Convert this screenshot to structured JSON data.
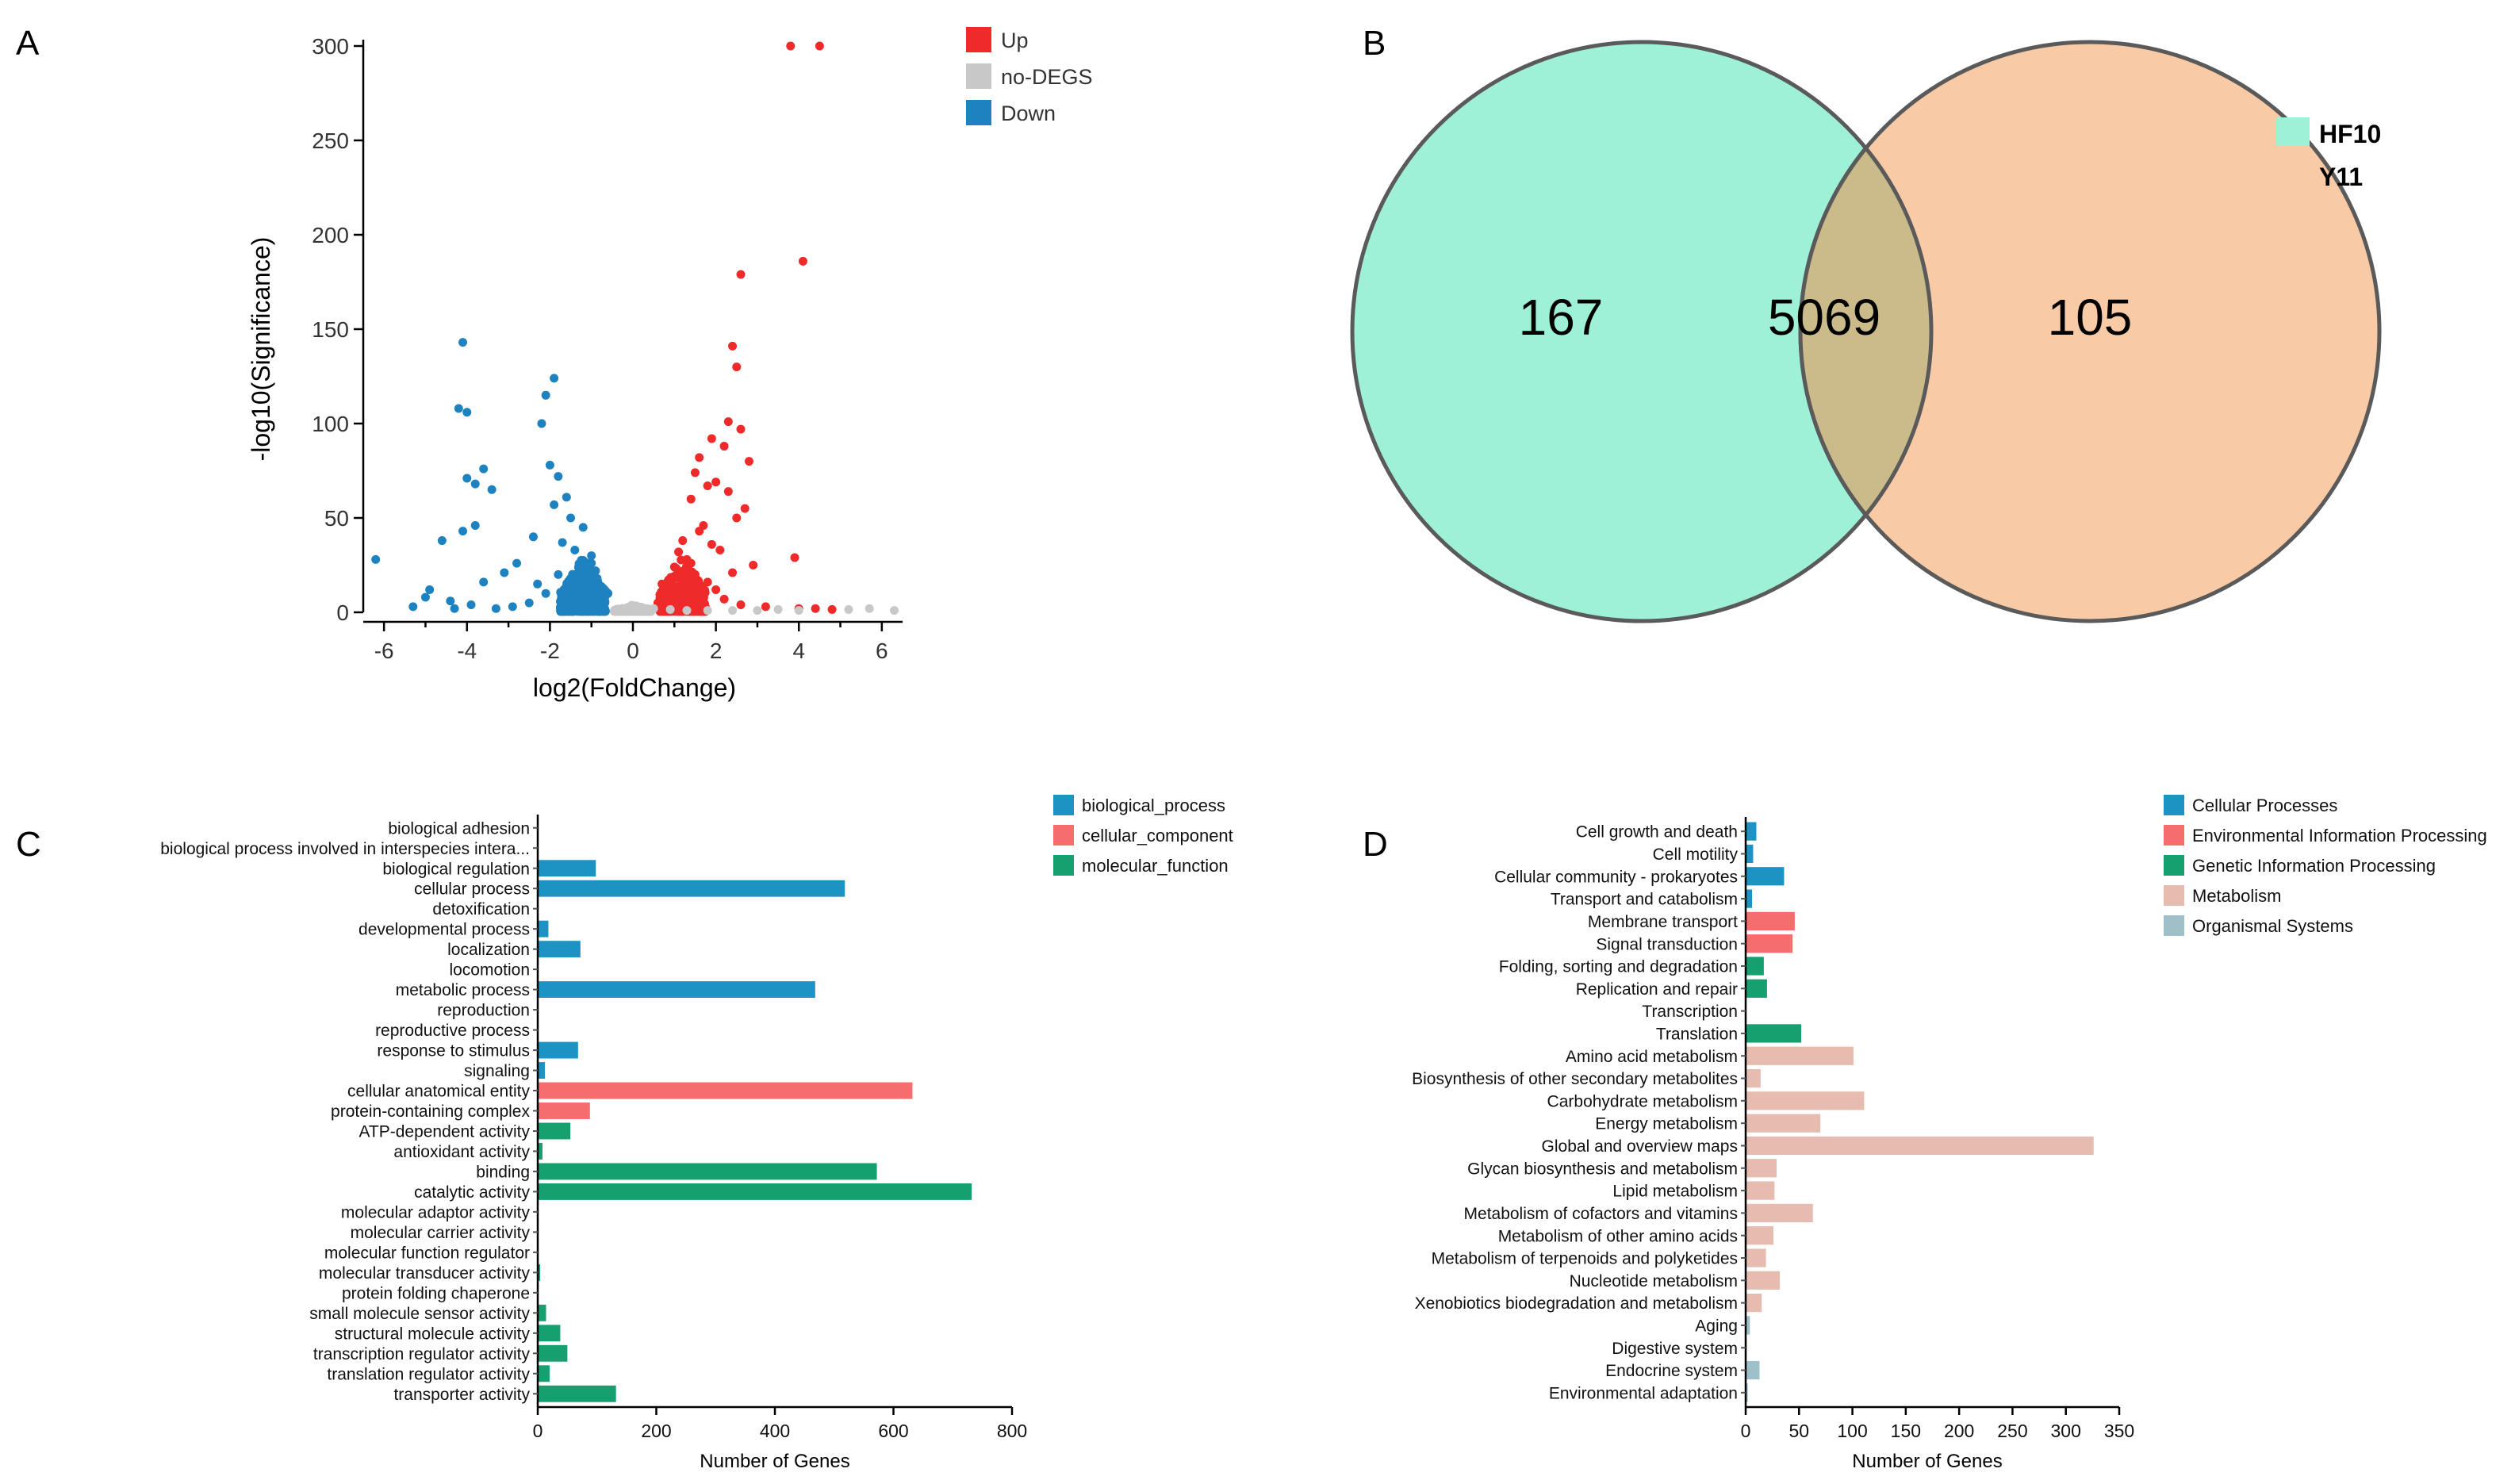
{
  "panels": {
    "a": {
      "letter": "A"
    },
    "b": {
      "letter": "B"
    },
    "c": {
      "letter": "C"
    },
    "d": {
      "letter": "D"
    }
  },
  "colors": {
    "up": "#ee2a2a",
    "nodegs": "#c8c8c8",
    "down": "#1f82c0",
    "venn_hf10": "#9ef0d6",
    "venn_y11": "#f9caa6",
    "venn_overlap": "#cbbb8a",
    "bp": "#1d93c4",
    "cc": "#f56d6d",
    "mf": "#16a06f",
    "cellular_processes": "#1d93c4",
    "environmental": "#f56d6d",
    "genetic": "#16a06f",
    "metabolism": "#e6bbb0",
    "organismal": "#9fbfc9"
  },
  "chart_data": [
    {
      "id": "A",
      "type": "scatter",
      "title": "",
      "xlabel": "log2(FoldChange)",
      "ylabel": "-log10(Significance)",
      "xlim": [
        -6.5,
        6.5
      ],
      "ylim": [
        0,
        300
      ],
      "xticks": [
        -6,
        -4,
        -2,
        0,
        2,
        4,
        6
      ],
      "yticks": [
        0,
        50,
        100,
        150,
        200,
        250,
        300
      ],
      "legend_position": "top-right",
      "series": [
        {
          "name": "Up",
          "color_key": "up",
          "points": [
            [
              3.8,
              300
            ],
            [
              4.5,
              300
            ],
            [
              4.1,
              186
            ],
            [
              2.6,
              179
            ],
            [
              2.4,
              141
            ],
            [
              2.5,
              130
            ],
            [
              2.3,
              101
            ],
            [
              2.6,
              97
            ],
            [
              1.9,
              92
            ],
            [
              2.2,
              88
            ],
            [
              1.6,
              82
            ],
            [
              2.8,
              80
            ],
            [
              1.5,
              74
            ],
            [
              2.0,
              69
            ],
            [
              1.8,
              67
            ],
            [
              2.3,
              64
            ],
            [
              1.4,
              60
            ],
            [
              2.7,
              55
            ],
            [
              2.5,
              50
            ],
            [
              1.7,
              46
            ],
            [
              3.9,
              29
            ],
            [
              2.9,
              25
            ],
            [
              1.6,
              43
            ],
            [
              1.2,
              38
            ],
            [
              2.1,
              33
            ],
            [
              1.3,
              28
            ],
            [
              1.0,
              24
            ],
            [
              0.9,
              18
            ],
            [
              1.1,
              14
            ],
            [
              1.5,
              20
            ],
            [
              1.8,
              16
            ],
            [
              2.0,
              12
            ],
            [
              0.7,
              8
            ],
            [
              0.6,
              5
            ],
            [
              1.2,
              9
            ],
            [
              1.6,
              10
            ],
            [
              2.2,
              7
            ],
            [
              2.6,
              4
            ],
            [
              3.2,
              3
            ],
            [
              4.0,
              2
            ],
            [
              4.4,
              2
            ],
            [
              4.8,
              1.5
            ],
            [
              0.8,
              12
            ],
            [
              1.4,
              26
            ],
            [
              1.9,
              36
            ],
            [
              2.4,
              21
            ],
            [
              1.1,
              32
            ],
            [
              0.7,
              15
            ],
            [
              1.5,
              4
            ],
            [
              1.0,
              6
            ]
          ]
        },
        {
          "name": "no-DEGS",
          "color_key": "nodegs",
          "points": [
            [
              0.2,
              1
            ],
            [
              0.5,
              2
            ],
            [
              0.9,
              1.5
            ],
            [
              1.3,
              1
            ],
            [
              1.8,
              1
            ],
            [
              2.4,
              1
            ],
            [
              3.0,
              1
            ],
            [
              3.5,
              1.5
            ],
            [
              4.0,
              1
            ],
            [
              5.2,
              1.5
            ],
            [
              5.7,
              2
            ],
            [
              6.3,
              1
            ],
            [
              -0.2,
              1
            ],
            [
              -0.4,
              1.5
            ],
            [
              0.0,
              2
            ]
          ]
        },
        {
          "name": "Down",
          "color_key": "down",
          "points": [
            [
              -4.1,
              143
            ],
            [
              -1.9,
              124
            ],
            [
              -2.1,
              115
            ],
            [
              -4.2,
              108
            ],
            [
              -4.0,
              106
            ],
            [
              -2.2,
              100
            ],
            [
              -3.6,
              76
            ],
            [
              -4.0,
              71
            ],
            [
              -3.8,
              68
            ],
            [
              -2.0,
              78
            ],
            [
              -1.8,
              72
            ],
            [
              -3.4,
              65
            ],
            [
              -1.6,
              61
            ],
            [
              -1.9,
              57
            ],
            [
              -3.8,
              46
            ],
            [
              -1.5,
              50
            ],
            [
              -1.2,
              45
            ],
            [
              -4.1,
              43
            ],
            [
              -2.4,
              40
            ],
            [
              -1.7,
              37
            ],
            [
              -4.6,
              38
            ],
            [
              -6.2,
              28
            ],
            [
              -1.4,
              33
            ],
            [
              -1.0,
              30
            ],
            [
              -2.8,
              26
            ],
            [
              -3.1,
              21
            ],
            [
              -3.6,
              16
            ],
            [
              -4.9,
              12
            ],
            [
              -5.0,
              8
            ],
            [
              -4.4,
              6
            ],
            [
              -3.9,
              4
            ],
            [
              -2.5,
              5
            ],
            [
              -1.3,
              18
            ],
            [
              -1.1,
              12
            ],
            [
              -0.8,
              8
            ],
            [
              -2.1,
              10
            ],
            [
              -1.6,
              14
            ],
            [
              -0.9,
              22
            ],
            [
              -1.0,
              26
            ],
            [
              -1.4,
              6
            ],
            [
              -2.9,
              3
            ],
            [
              -3.3,
              2
            ],
            [
              -5.3,
              3
            ],
            [
              -0.7,
              4
            ],
            [
              -1.8,
              20
            ],
            [
              -2.3,
              15
            ],
            [
              -1.2,
              24
            ],
            [
              -0.6,
              10
            ],
            [
              -1.5,
              9
            ],
            [
              -4.3,
              2
            ]
          ]
        }
      ],
      "clouds": [
        {
          "color_key": "up",
          "cx": 1.2,
          "spread_x": 0.55,
          "max_y": 30
        },
        {
          "color_key": "down",
          "cx": -1.2,
          "spread_x": 0.55,
          "max_y": 30
        },
        {
          "color_key": "nodegs",
          "cx": 0.0,
          "spread_x": 0.45,
          "max_y": 4
        }
      ]
    },
    {
      "id": "B",
      "type": "venn",
      "sets": [
        {
          "name": "HF10",
          "only": 167,
          "color_key": "venn_hf10"
        },
        {
          "name": "Y11",
          "only": 105,
          "color_key": "venn_y11"
        }
      ],
      "intersection": 5069,
      "legend_position": "top-right"
    },
    {
      "id": "C",
      "type": "bar",
      "orientation": "horizontal",
      "xlabel": "Number of Genes",
      "xlim": [
        0,
        800
      ],
      "xticks": [
        0,
        200,
        400,
        600,
        800
      ],
      "legend_position": "top-right",
      "legend": [
        {
          "name": "biological_process",
          "color_key": "bp"
        },
        {
          "name": "cellular_component",
          "color_key": "cc"
        },
        {
          "name": "molecular_function",
          "color_key": "mf"
        }
      ],
      "categories": [
        {
          "label": "biological adhesion",
          "value": 0,
          "group": "bp"
        },
        {
          "label": "biological process involved in interspecies intera...",
          "value": 0,
          "group": "bp"
        },
        {
          "label": "biological regulation",
          "value": 98,
          "group": "bp"
        },
        {
          "label": "cellular process",
          "value": 518,
          "group": "bp"
        },
        {
          "label": "detoxification",
          "value": 0,
          "group": "bp"
        },
        {
          "label": "developmental process",
          "value": 18,
          "group": "bp"
        },
        {
          "label": "localization",
          "value": 72,
          "group": "bp"
        },
        {
          "label": "locomotion",
          "value": 0,
          "group": "bp"
        },
        {
          "label": "metabolic process",
          "value": 468,
          "group": "bp"
        },
        {
          "label": "reproduction",
          "value": 0,
          "group": "bp"
        },
        {
          "label": "reproductive process",
          "value": 0,
          "group": "bp"
        },
        {
          "label": "response to stimulus",
          "value": 68,
          "group": "bp"
        },
        {
          "label": "signaling",
          "value": 12,
          "group": "bp"
        },
        {
          "label": "cellular anatomical entity",
          "value": 632,
          "group": "cc"
        },
        {
          "label": "protein-containing complex",
          "value": 88,
          "group": "cc"
        },
        {
          "label": "ATP-dependent activity",
          "value": 55,
          "group": "mf"
        },
        {
          "label": "antioxidant activity",
          "value": 8,
          "group": "mf"
        },
        {
          "label": "binding",
          "value": 572,
          "group": "mf"
        },
        {
          "label": "catalytic activity",
          "value": 732,
          "group": "mf"
        },
        {
          "label": "molecular adaptor activity",
          "value": 0,
          "group": "mf"
        },
        {
          "label": "molecular carrier activity",
          "value": 0,
          "group": "mf"
        },
        {
          "label": "molecular function regulator",
          "value": 0,
          "group": "mf"
        },
        {
          "label": "molecular transducer activity",
          "value": 4,
          "group": "mf"
        },
        {
          "label": "protein folding chaperone",
          "value": 0,
          "group": "mf"
        },
        {
          "label": "small molecule sensor activity",
          "value": 14,
          "group": "mf"
        },
        {
          "label": "structural molecule activity",
          "value": 38,
          "group": "mf"
        },
        {
          "label": "transcription regulator activity",
          "value": 50,
          "group": "mf"
        },
        {
          "label": "translation regulator activity",
          "value": 20,
          "group": "mf"
        },
        {
          "label": "transporter activity",
          "value": 132,
          "group": "mf"
        }
      ]
    },
    {
      "id": "D",
      "type": "bar",
      "orientation": "horizontal",
      "xlabel": "Number of Genes",
      "xlim": [
        0,
        350
      ],
      "xticks": [
        0,
        50,
        100,
        150,
        200,
        250,
        300,
        350
      ],
      "legend_position": "top-right",
      "legend": [
        {
          "name": "Cellular Processes",
          "color_key": "cellular_processes"
        },
        {
          "name": "Environmental Information Processing",
          "color_key": "environmental"
        },
        {
          "name": "Genetic Information Processing",
          "color_key": "genetic"
        },
        {
          "name": "Metabolism",
          "color_key": "metabolism"
        },
        {
          "name": "Organismal Systems",
          "color_key": "organismal"
        }
      ],
      "categories": [
        {
          "label": "Cell growth and death",
          "value": 10,
          "group": "cellular_processes"
        },
        {
          "label": "Cell motility",
          "value": 7,
          "group": "cellular_processes"
        },
        {
          "label": "Cellular community - prokaryotes",
          "value": 36,
          "group": "cellular_processes"
        },
        {
          "label": "Transport and catabolism",
          "value": 6,
          "group": "cellular_processes"
        },
        {
          "label": "Membrane transport",
          "value": 46,
          "group": "environmental"
        },
        {
          "label": "Signal transduction",
          "value": 44,
          "group": "environmental"
        },
        {
          "label": "Folding, sorting and degradation",
          "value": 17,
          "group": "genetic"
        },
        {
          "label": "Replication and repair",
          "value": 20,
          "group": "genetic"
        },
        {
          "label": "Transcription",
          "value": 0,
          "group": "genetic"
        },
        {
          "label": "Translation",
          "value": 52,
          "group": "genetic"
        },
        {
          "label": "Amino acid metabolism",
          "value": 101,
          "group": "metabolism"
        },
        {
          "label": "Biosynthesis of other secondary metabolites",
          "value": 14,
          "group": "metabolism"
        },
        {
          "label": "Carbohydrate metabolism",
          "value": 111,
          "group": "metabolism"
        },
        {
          "label": "Energy metabolism",
          "value": 70,
          "group": "metabolism"
        },
        {
          "label": "Global and overview maps",
          "value": 326,
          "group": "metabolism"
        },
        {
          "label": "Glycan biosynthesis and metabolism",
          "value": 29,
          "group": "metabolism"
        },
        {
          "label": "Lipid metabolism",
          "value": 27,
          "group": "metabolism"
        },
        {
          "label": "Metabolism of cofactors and vitamins",
          "value": 63,
          "group": "metabolism"
        },
        {
          "label": "Metabolism of other amino acids",
          "value": 26,
          "group": "metabolism"
        },
        {
          "label": "Metabolism of terpenoids and polyketides",
          "value": 19,
          "group": "metabolism"
        },
        {
          "label": "Nucleotide metabolism",
          "value": 32,
          "group": "metabolism"
        },
        {
          "label": "Xenobiotics biodegradation and metabolism",
          "value": 15,
          "group": "metabolism"
        },
        {
          "label": "Aging",
          "value": 4,
          "group": "organismal"
        },
        {
          "label": "Digestive system",
          "value": 1,
          "group": "organismal"
        },
        {
          "label": "Endocrine system",
          "value": 13,
          "group": "organismal"
        },
        {
          "label": "Environmental adaptation",
          "value": 2,
          "group": "organismal"
        }
      ]
    }
  ]
}
